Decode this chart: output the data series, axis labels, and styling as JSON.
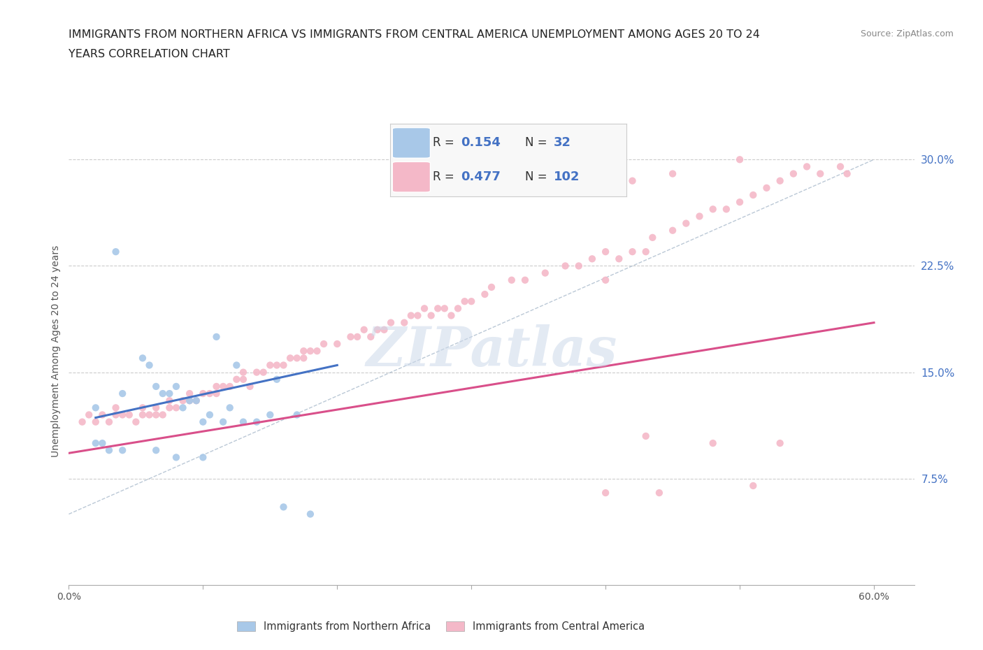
{
  "title_line1": "IMMIGRANTS FROM NORTHERN AFRICA VS IMMIGRANTS FROM CENTRAL AMERICA UNEMPLOYMENT AMONG AGES 20 TO 24",
  "title_line2": "YEARS CORRELATION CHART",
  "source": "Source: ZipAtlas.com",
  "ylabel": "Unemployment Among Ages 20 to 24 years",
  "xlim": [
    0.0,
    0.63
  ],
  "ylim": [
    0.0,
    0.33
  ],
  "ytick_positions": [
    0.075,
    0.15,
    0.225,
    0.3
  ],
  "ytick_labels": [
    "7.5%",
    "15.0%",
    "22.5%",
    "30.0%"
  ],
  "xtick_positions": [
    0.0,
    0.1,
    0.2,
    0.3,
    0.4,
    0.5,
    0.6
  ],
  "xticklabels_show": [
    "0.0%",
    "60.0%"
  ],
  "watermark": "ZIPatlas",
  "color_blue": "#a8c8e8",
  "color_pink": "#f4b8c8",
  "color_blue_line": "#4472c4",
  "color_pink_line": "#d94f8a",
  "color_dashed": "#aabbcc",
  "color_ytick": "#4472c4",
  "legend_box_color": "#f5f5f5",
  "blue_x": [
    0.02,
    0.035,
    0.04,
    0.055,
    0.06,
    0.065,
    0.07,
    0.075,
    0.08,
    0.085,
    0.09,
    0.095,
    0.1,
    0.105,
    0.11,
    0.115,
    0.12,
    0.125,
    0.13,
    0.14,
    0.15,
    0.155,
    0.16,
    0.17,
    0.18,
    0.02,
    0.025,
    0.03,
    0.04,
    0.065,
    0.08,
    0.1
  ],
  "blue_y": [
    0.125,
    0.235,
    0.135,
    0.16,
    0.155,
    0.14,
    0.135,
    0.135,
    0.14,
    0.125,
    0.13,
    0.13,
    0.115,
    0.12,
    0.175,
    0.115,
    0.125,
    0.155,
    0.115,
    0.115,
    0.12,
    0.145,
    0.055,
    0.12,
    0.05,
    0.1,
    0.1,
    0.095,
    0.095,
    0.095,
    0.09,
    0.09
  ],
  "pink_x": [
    0.01,
    0.015,
    0.02,
    0.025,
    0.03,
    0.035,
    0.035,
    0.04,
    0.045,
    0.05,
    0.055,
    0.055,
    0.06,
    0.065,
    0.065,
    0.07,
    0.075,
    0.075,
    0.08,
    0.085,
    0.09,
    0.09,
    0.095,
    0.1,
    0.105,
    0.11,
    0.11,
    0.115,
    0.12,
    0.125,
    0.13,
    0.13,
    0.135,
    0.14,
    0.145,
    0.15,
    0.155,
    0.16,
    0.165,
    0.17,
    0.175,
    0.175,
    0.18,
    0.185,
    0.19,
    0.2,
    0.21,
    0.215,
    0.22,
    0.225,
    0.23,
    0.235,
    0.24,
    0.25,
    0.255,
    0.26,
    0.265,
    0.27,
    0.275,
    0.28,
    0.285,
    0.29,
    0.295,
    0.3,
    0.31,
    0.315,
    0.33,
    0.34,
    0.355,
    0.37,
    0.38,
    0.39,
    0.4,
    0.4,
    0.41,
    0.42,
    0.43,
    0.435,
    0.45,
    0.46,
    0.47,
    0.48,
    0.49,
    0.5,
    0.51,
    0.52,
    0.53,
    0.54,
    0.55,
    0.56,
    0.575,
    0.58,
    0.38,
    0.42,
    0.45,
    0.5,
    0.43,
    0.48,
    0.53,
    0.4,
    0.51,
    0.44
  ],
  "pink_y": [
    0.115,
    0.12,
    0.115,
    0.12,
    0.115,
    0.12,
    0.125,
    0.12,
    0.12,
    0.115,
    0.12,
    0.125,
    0.12,
    0.125,
    0.12,
    0.12,
    0.125,
    0.13,
    0.125,
    0.13,
    0.13,
    0.135,
    0.13,
    0.135,
    0.135,
    0.14,
    0.135,
    0.14,
    0.14,
    0.145,
    0.145,
    0.15,
    0.14,
    0.15,
    0.15,
    0.155,
    0.155,
    0.155,
    0.16,
    0.16,
    0.165,
    0.16,
    0.165,
    0.165,
    0.17,
    0.17,
    0.175,
    0.175,
    0.18,
    0.175,
    0.18,
    0.18,
    0.185,
    0.185,
    0.19,
    0.19,
    0.195,
    0.19,
    0.195,
    0.195,
    0.19,
    0.195,
    0.2,
    0.2,
    0.205,
    0.21,
    0.215,
    0.215,
    0.22,
    0.225,
    0.225,
    0.23,
    0.235,
    0.215,
    0.23,
    0.235,
    0.235,
    0.245,
    0.25,
    0.255,
    0.26,
    0.265,
    0.265,
    0.27,
    0.275,
    0.28,
    0.285,
    0.29,
    0.295,
    0.29,
    0.295,
    0.29,
    0.29,
    0.285,
    0.29,
    0.3,
    0.105,
    0.1,
    0.1,
    0.065,
    0.07,
    0.065
  ]
}
